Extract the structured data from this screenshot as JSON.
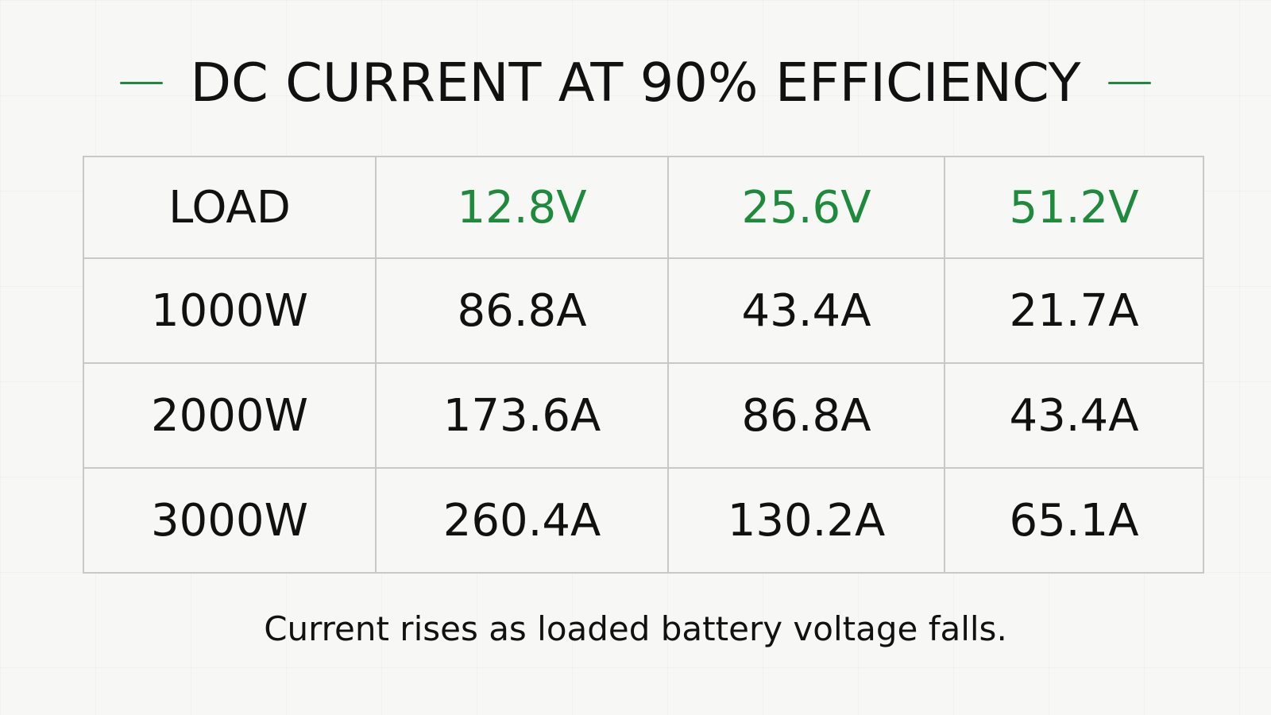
{
  "title": "DC CURRENT AT 90% EFFICIENCY",
  "accent_color": "#1e8a3c",
  "table": {
    "headers": [
      "LOAD",
      "12.8V",
      "25.6V",
      "51.2V"
    ],
    "rows": [
      [
        "1000W",
        "86.8A",
        "43.4A",
        "21.7A"
      ],
      [
        "2000W",
        "173.6A",
        "86.8A",
        "43.4A"
      ],
      [
        "3000W",
        "260.4A",
        "130.2A",
        "65.1A"
      ]
    ]
  },
  "caption": "Current rises as loaded battery voltage falls."
}
